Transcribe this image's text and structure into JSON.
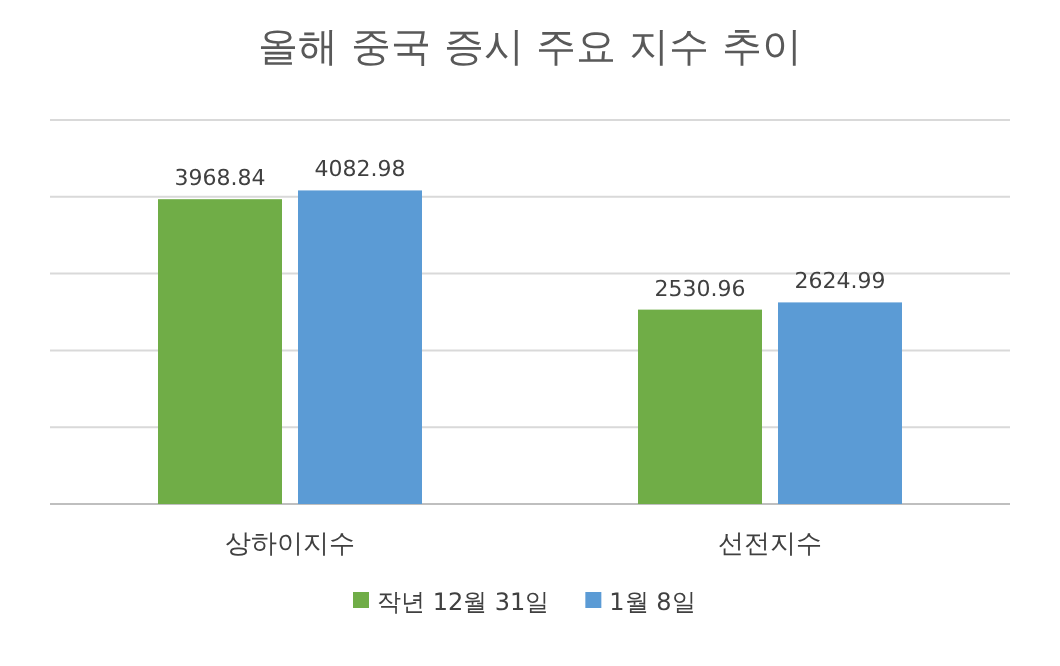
{
  "chart_data": {
    "type": "bar",
    "title": "올해 중국 증시 주요 지수 추이",
    "categories": [
      "상하이지수",
      "선전지수"
    ],
    "series": [
      {
        "name": "작년 12월 31일",
        "color": "#70ad47",
        "values": [
          3968.84,
          2530.96
        ]
      },
      {
        "name": "1월 8일",
        "color": "#5b9bd5",
        "values": [
          4082.98,
          2624.99
        ]
      }
    ],
    "ylim": [
      0,
      5000
    ],
    "yticks": [
      {
        "value": 0,
        "label": null
      },
      {
        "value": 1000,
        "label": null
      },
      {
        "value": 2000,
        "label": null
      },
      {
        "value": 3000,
        "label": null
      },
      {
        "value": 4000,
        "label": null
      },
      {
        "value": 5000,
        "label": null
      }
    ],
    "tick_labels": "x",
    "grid": "y",
    "legend": "bottom",
    "data_labels": true
  }
}
